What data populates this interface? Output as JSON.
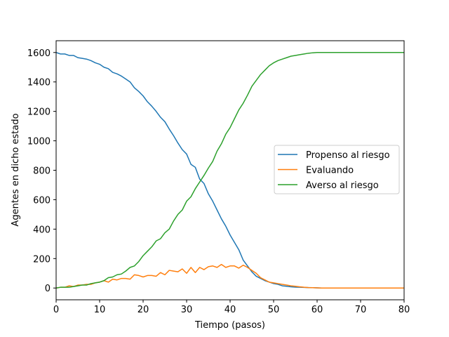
{
  "chart_data": {
    "type": "line",
    "title": "",
    "xlabel": "Tiempo (pasos)",
    "ylabel": "Agentes en dicho estado",
    "xlim": [
      0,
      80
    ],
    "ylim": [
      -80,
      1680
    ],
    "xticks": [
      0,
      10,
      20,
      30,
      40,
      50,
      60,
      70,
      80
    ],
    "yticks": [
      0,
      200,
      400,
      600,
      800,
      1000,
      1200,
      1400,
      1600
    ],
    "grid": false,
    "legend_position": "center-right",
    "x": [
      0,
      1,
      2,
      3,
      4,
      5,
      6,
      7,
      8,
      9,
      10,
      11,
      12,
      13,
      14,
      15,
      16,
      17,
      18,
      19,
      20,
      21,
      22,
      23,
      24,
      25,
      26,
      27,
      28,
      29,
      30,
      31,
      32,
      33,
      34,
      35,
      36,
      37,
      38,
      39,
      40,
      41,
      42,
      43,
      44,
      45,
      46,
      47,
      48,
      49,
      50,
      51,
      52,
      53,
      54,
      55,
      56,
      57,
      58,
      59,
      60,
      61,
      62,
      63,
      64,
      65,
      66,
      67,
      68,
      69,
      70,
      71,
      72,
      73,
      74,
      75,
      76,
      77,
      78,
      79,
      80
    ],
    "series": [
      {
        "name": "Propenso al riesgo",
        "color": "#1f77b4",
        "values": [
          1600,
          1590,
          1590,
          1580,
          1580,
          1565,
          1560,
          1555,
          1545,
          1530,
          1520,
          1500,
          1490,
          1465,
          1455,
          1440,
          1420,
          1400,
          1360,
          1335,
          1305,
          1265,
          1235,
          1200,
          1160,
          1130,
          1080,
          1035,
          985,
          940,
          910,
          840,
          820,
          740,
          710,
          640,
          590,
          530,
          470,
          420,
          360,
          310,
          260,
          190,
          150,
          110,
          80,
          65,
          50,
          40,
          30,
          25,
          15,
          12,
          8,
          6,
          5,
          4,
          3,
          2,
          1,
          0,
          0,
          0,
          0,
          0,
          0,
          0,
          0,
          0,
          0,
          0,
          0,
          0,
          0,
          0,
          0,
          0,
          0,
          0,
          0
        ]
      },
      {
        "name": "Evaluando",
        "color": "#ff7f0e",
        "values": [
          0,
          5,
          5,
          15,
          10,
          20,
          20,
          25,
          25,
          35,
          40,
          50,
          40,
          60,
          55,
          65,
          65,
          60,
          90,
          85,
          75,
          85,
          85,
          80,
          105,
          90,
          120,
          115,
          110,
          130,
          100,
          140,
          105,
          140,
          125,
          145,
          150,
          140,
          160,
          140,
          150,
          150,
          135,
          155,
          140,
          120,
          100,
          70,
          55,
          40,
          35,
          30,
          25,
          20,
          15,
          12,
          8,
          5,
          3,
          2,
          1,
          0,
          0,
          0,
          0,
          0,
          0,
          0,
          0,
          0,
          0,
          0,
          0,
          0,
          0,
          0,
          0,
          0,
          0,
          0,
          0
        ]
      },
      {
        "name": "Averso al riesgo",
        "color": "#2ca02c",
        "values": [
          0,
          5,
          5,
          5,
          10,
          15,
          20,
          20,
          30,
          35,
          40,
          50,
          70,
          75,
          90,
          95,
          115,
          140,
          150,
          180,
          220,
          250,
          280,
          320,
          335,
          375,
          400,
          455,
          500,
          530,
          590,
          620,
          675,
          720,
          765,
          815,
          860,
          930,
          980,
          1045,
          1090,
          1150,
          1210,
          1255,
          1310,
          1370,
          1410,
          1450,
          1480,
          1510,
          1530,
          1545,
          1555,
          1565,
          1575,
          1580,
          1585,
          1590,
          1595,
          1598,
          1600,
          1600,
          1600,
          1600,
          1600,
          1600,
          1600,
          1600,
          1600,
          1600,
          1600,
          1600,
          1600,
          1600,
          1600,
          1600,
          1600,
          1600,
          1600,
          1600,
          1600
        ]
      }
    ]
  }
}
